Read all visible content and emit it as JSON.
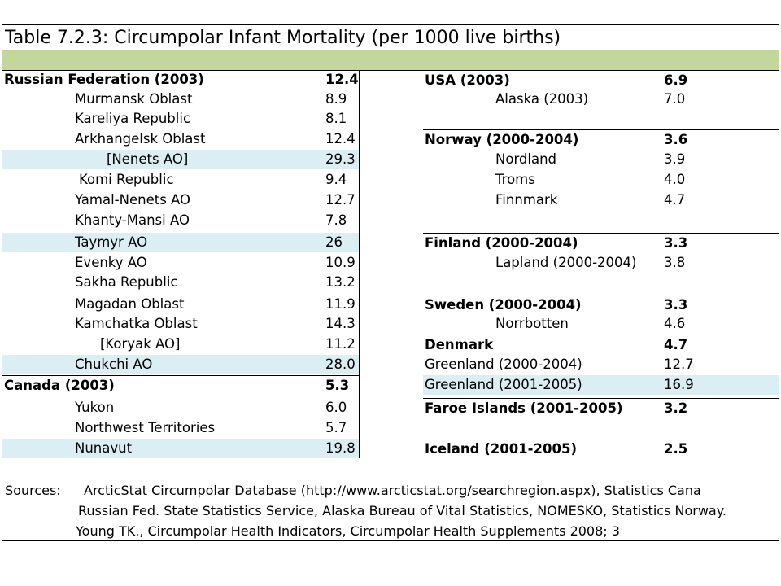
{
  "title": {
    "main": "Table 7.2.3: Circumpolar Infant Mortality",
    "unit": "(per 1000 live",
    "unit_end": "births)"
  },
  "left_rows": [
    {
      "name": "Russian Federation (2003)",
      "value": "12.4",
      "bold": true,
      "indent": 0,
      "highlight": false
    },
    {
      "name": "Murmansk Oblast",
      "value": "8.9",
      "bold": false,
      "indent": 1,
      "highlight": false
    },
    {
      "name": "Kareliya Republic",
      "value": "8.1",
      "bold": false,
      "indent": 1,
      "highlight": false
    },
    {
      "name": "Arkhangelsk Oblast",
      "value": "12.4",
      "bold": false,
      "indent": 1,
      "highlight": false
    },
    {
      "name": "[Nenets AO]",
      "value": "29.3",
      "bold": false,
      "indent": 2,
      "highlight": true
    },
    {
      "name": "Komi Republic",
      "value": "9.4",
      "bold": false,
      "indent": 3,
      "highlight": false
    },
    {
      "name": "Yamal-Nenets AO",
      "value": "12.7",
      "bold": false,
      "indent": 1,
      "highlight": false
    },
    {
      "name": "Khanty-Mansi AO",
      "value": "7.8",
      "bold": false,
      "indent": 1,
      "highlight": false
    },
    {
      "name": "Taymyr AO",
      "value": "26",
      "bold": false,
      "indent": 1,
      "highlight": true
    },
    {
      "name": "Evenky AO",
      "value": "10.9",
      "bold": false,
      "indent": 1,
      "highlight": false
    },
    {
      "name": "Sakha Republic",
      "value": "13.2",
      "bold": false,
      "indent": 1,
      "highlight": false
    },
    {
      "name": "Magadan Oblast",
      "value": "11.9",
      "bold": false,
      "indent": 1,
      "highlight": false
    },
    {
      "name": "Kamchatka Oblast",
      "value": "14.3",
      "bold": false,
      "indent": 1,
      "highlight": false
    },
    {
      "name": "[Koryak AO]",
      "value": "11.2",
      "bold": false,
      "indent": 4,
      "highlight": false
    },
    {
      "name": "Chukchi AO",
      "value": "28.0",
      "bold": false,
      "indent": 1,
      "highlight": true
    },
    {
      "name": "Canada (2003)",
      "value": "5.3",
      "bold": true,
      "indent": 0,
      "highlight": false
    },
    {
      "name": "Yukon",
      "value": "6.0",
      "bold": false,
      "indent": 1,
      "highlight": false
    },
    {
      "name": "Northwest Territories",
      "value": "5.7",
      "bold": false,
      "indent": 1,
      "highlight": false
    },
    {
      "name": "Nunavut",
      "value": "19.8",
      "bold": false,
      "indent": 1,
      "highlight": true
    }
  ],
  "right_rows": [
    {
      "name": "USA (2003)",
      "value": "6.9",
      "bold": true,
      "indent": 0,
      "highlight": false
    },
    {
      "name": "Alaska (2003)",
      "value": "7.0",
      "bold": false,
      "indent": 1,
      "highlight": false
    },
    {
      "name": "Norway (2000-2004)",
      "value": "3.6",
      "bold": true,
      "indent": 0,
      "highlight": false
    },
    {
      "name": "Nordland",
      "value": "3.9",
      "bold": false,
      "indent": 1,
      "highlight": false
    },
    {
      "name": "Troms",
      "value": "4.0",
      "bold": false,
      "indent": 1,
      "highlight": false
    },
    {
      "name": "Finnmark",
      "value": "4.7",
      "bold": false,
      "indent": 1,
      "highlight": false
    },
    {
      "name": "Finland (2000-2004)",
      "value": "3.3",
      "bold": true,
      "indent": 0,
      "highlight": false
    },
    {
      "name": "Lapland (2000-2004)",
      "value": "3.8",
      "bold": false,
      "indent": 1,
      "highlight": false
    },
    {
      "name": "Sweden (2000-2004)",
      "value": "3.3",
      "bold": true,
      "indent": 0,
      "highlight": false
    },
    {
      "name": "Norrbotten",
      "value": "4.6",
      "bold": false,
      "indent": 1,
      "highlight": false
    },
    {
      "name": "Denmark",
      "value": "4.7",
      "bold": true,
      "indent": 0,
      "highlight": false
    },
    {
      "name": "Greenland (2000-2004)",
      "value": "12.7",
      "bold": false,
      "indent": 0,
      "highlight": false
    },
    {
      "name": "Greenland (2001-2005)",
      "value": "16.9",
      "bold": false,
      "indent": 0,
      "highlight": true
    },
    {
      "name": "Faroe Islands (2001-2005)",
      "value": "3.2",
      "bold": true,
      "indent": 0,
      "highlight": false
    },
    {
      "name": "Iceland (2001-2005)",
      "value": "2.5",
      "bold": true,
      "indent": 0,
      "highlight": false
    }
  ],
  "sources": {
    "label": "Sources:",
    "line1": "ArcticStat Circumpolar Database (http://www.arcticstat.org/searchregion.aspx), Statistics Cana",
    "line2": "Russian Fed. State Statistics Service, Alaska Bureau of Vital Statistics, NOMESKO, Statistics Norway.",
    "line3": "Young TK., Circumpolar Health Indicators, Circumpolar Health Supplements 2008; 3"
  },
  "colors": {
    "band": "#c3d69b",
    "highlight": "#dbeef3"
  }
}
